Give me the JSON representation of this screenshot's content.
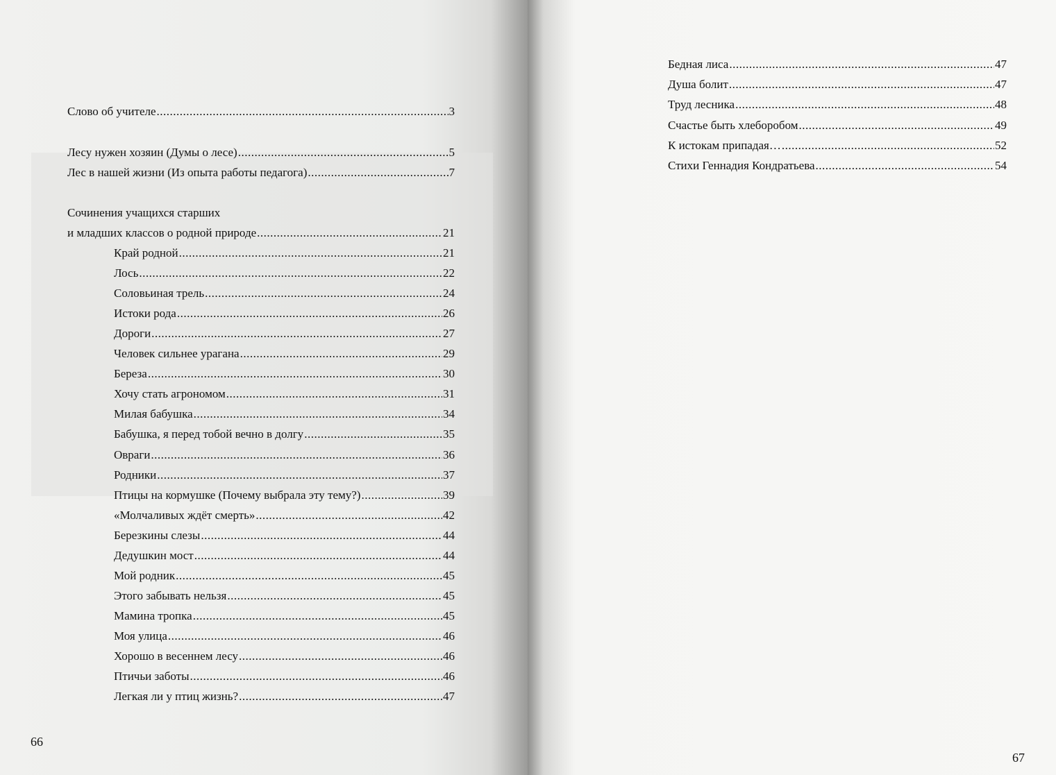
{
  "left_page": {
    "page_number": "66",
    "entries": [
      {
        "title": "Слово об учителе",
        "page": "3",
        "level": 1
      },
      {
        "title": "Лесу нужен хозяин (Думы о лесе)",
        "page": "5",
        "level": 1
      },
      {
        "title": "Лес в нашей жизни (Из опыта работы педагога)",
        "page": "7",
        "level": 1
      },
      {
        "title": "Сочинения учащихся старших",
        "page": "",
        "level": 1
      },
      {
        "title": "и младших классов о родной природе",
        "page": "21",
        "level": 1
      },
      {
        "title": "Край родной",
        "page": "21",
        "level": 2
      },
      {
        "title": "Лось",
        "page": "22",
        "level": 2
      },
      {
        "title": "Соловьиная трель",
        "page": "24",
        "level": 2
      },
      {
        "title": "Истоки рода",
        "page": "26",
        "level": 2
      },
      {
        "title": "Дороги",
        "page": "27",
        "level": 2
      },
      {
        "title": "Человек сильнее урагана",
        "page": "29",
        "level": 2
      },
      {
        "title": "Береза",
        "page": "30",
        "level": 2
      },
      {
        "title": "Хочу стать агрономом",
        "page": "31",
        "level": 2
      },
      {
        "title": "Милая бабушка",
        "page": "34",
        "level": 2
      },
      {
        "title": "Бабушка, я перед тобой вечно в долгу",
        "page": "35",
        "level": 2
      },
      {
        "title": "Овраги",
        "page": "36",
        "level": 2
      },
      {
        "title": "Родники",
        "page": "37",
        "level": 2
      },
      {
        "title": "Птицы на кормушке (Почему выбрала эту тему?)",
        "page": "39",
        "level": 2
      },
      {
        "title": "«Молчаливых ждёт смерть»",
        "page": "42",
        "level": 2
      },
      {
        "title": "Березкины слезы",
        "page": "44",
        "level": 2
      },
      {
        "title": "Дедушкин мост",
        "page": "44",
        "level": 2
      },
      {
        "title": "Мой родник",
        "page": "45",
        "level": 2
      },
      {
        "title": "Этого забывать нельзя",
        "page": "45",
        "level": 2
      },
      {
        "title": "Мамина тропка",
        "page": "45",
        "level": 2
      },
      {
        "title": "Моя улица",
        "page": "46",
        "level": 2
      },
      {
        "title": "Хорошо в весеннем лесу",
        "page": "46",
        "level": 2
      },
      {
        "title": "Птичьи заботы",
        "page": "46",
        "level": 2
      },
      {
        "title": "Легкая ли у птиц жизнь?",
        "page": "47",
        "level": 2
      }
    ]
  },
  "right_page": {
    "page_number": "67",
    "entries": [
      {
        "title": "Бедная лиса",
        "page": "47"
      },
      {
        "title": "Душа болит",
        "page": "47"
      },
      {
        "title": "Труд лесника",
        "page": "48"
      },
      {
        "title": "Счастье быть хлеборобом",
        "page": "49"
      },
      {
        "title": "К истокам припадая…",
        "page": "52"
      },
      {
        "title": "Стихи Геннадия Кондратьева",
        "page": "54"
      }
    ]
  }
}
